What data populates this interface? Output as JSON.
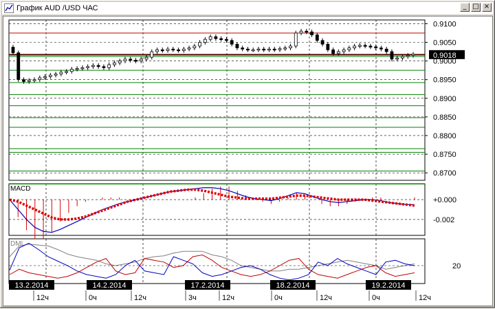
{
  "window": {
    "title": "График AUD /USD  ЧАС",
    "buttons": {
      "minimize": "_",
      "maximize": "□",
      "close": "×"
    }
  },
  "colors": {
    "candle": "#000000",
    "level_red": "#c00000",
    "level_green": "#008000",
    "macd_line": "#0000c0",
    "signal_line": "#e00000",
    "dmi_plus": "#0000c0",
    "dmi_minus": "#c00000",
    "adx": "#808080"
  },
  "price_panel": {
    "y_ticks": [
      "0.9100",
      "0.9050",
      "0.9000",
      "0.8950",
      "0.8900",
      "0.8850",
      "0.8800",
      "0.8750",
      "0.8700"
    ],
    "current_price_label": "0.9018"
  },
  "macd_panel": {
    "label": "MACD",
    "y_ticks": [
      "+0.000",
      "-0.002"
    ]
  },
  "dmi_panel": {
    "label": "DMI",
    "y_ticks": [
      "20"
    ]
  },
  "date_labels": [
    "13.2.2014",
    "14.2.2014",
    "17.2.2014",
    "18.2.2014",
    "19.2.2014"
  ],
  "time_labels": [
    "12ч",
    "0ч",
    "12ч",
    "3ч",
    "12ч",
    "0ч",
    "12ч",
    "0ч",
    "12ч"
  ],
  "chart_data": {
    "type": "candlestick",
    "y_range": [
      0.868,
      0.911
    ],
    "current_price": 0.9018,
    "levels_red": [
      0.9075,
      0.9018
    ],
    "levels_green": [
      0.9012,
      0.8975,
      0.8942,
      0.891,
      0.888,
      0.8848,
      0.8822,
      0.8765,
      0.8755,
      0.8705,
      0.867
    ],
    "closes": [
      0.9022,
      0.895,
      0.8945,
      0.8948,
      0.895,
      0.8955,
      0.8958,
      0.8962,
      0.8965,
      0.897,
      0.8972,
      0.8978,
      0.898,
      0.8982,
      0.8985,
      0.8988,
      0.8985,
      0.8982,
      0.899,
      0.8995,
      0.9,
      0.9005,
      0.9002,
      0.9,
      0.9005,
      0.901,
      0.9025,
      0.903,
      0.9028,
      0.9032,
      0.903,
      0.9028,
      0.9032,
      0.9035,
      0.904,
      0.905,
      0.9058,
      0.9065,
      0.906,
      0.9058,
      0.9055,
      0.9045,
      0.9035,
      0.9032,
      0.903,
      0.903,
      0.9032,
      0.903,
      0.9032,
      0.903,
      0.9033,
      0.9035,
      0.904,
      0.9075,
      0.908,
      0.9078,
      0.907,
      0.9055,
      0.9045,
      0.903,
      0.902,
      0.9025,
      0.903,
      0.9035,
      0.904,
      0.9042,
      0.904,
      0.9038,
      0.9035,
      0.9032,
      0.9025,
      0.9005,
      0.9008,
      0.9012,
      0.9015,
      0.9018
    ],
    "macd": [
      0.0,
      -0.001,
      -0.002,
      -0.0028,
      -0.0032,
      -0.0033,
      -0.003,
      -0.0026,
      -0.0022,
      -0.0018,
      -0.0014,
      -0.001,
      -0.0007,
      -0.0004,
      -0.0002,
      0.0,
      0.0002,
      0.0004,
      0.0006,
      0.0008,
      0.0009,
      0.001,
      0.0011,
      0.0012,
      0.0012,
      0.0011,
      0.0009,
      0.0006,
      0.0003,
      0.0001,
      0.0,
      -0.0001,
      0.0001,
      0.0004,
      0.0007,
      0.0006,
      0.0003,
      0.0,
      -0.0002,
      -0.0003,
      -0.0002,
      -0.0001,
      0.0,
      0.0,
      -0.0001,
      -0.0003,
      -0.0004,
      -0.0005,
      -0.0005
    ],
    "signal": [
      0.0,
      -0.0002,
      -0.0006,
      -0.001,
      -0.0014,
      -0.0018,
      -0.002,
      -0.002,
      -0.0019,
      -0.0017,
      -0.0014,
      -0.0011,
      -0.0008,
      -0.0005,
      -0.0002,
      0.0,
      0.0002,
      0.0004,
      0.0006,
      0.0008,
      0.0009,
      0.001,
      0.001,
      0.0009,
      0.0007,
      0.0005,
      0.0003,
      0.0002,
      0.0001,
      0.0001,
      0.0001,
      0.0001,
      0.0002,
      0.0003,
      0.0004,
      0.0004,
      0.0003,
      0.0002,
      0.0001,
      0.0,
      0.0,
      0.0,
      0.0,
      -0.0001,
      -0.0002,
      -0.0003,
      -0.0004,
      -0.0005,
      -0.0006
    ],
    "dmi_plus": [
      15,
      40,
      45,
      38,
      30,
      25,
      20,
      14,
      10,
      8,
      6,
      10,
      20,
      26,
      14,
      12,
      10,
      30,
      26,
      22,
      12,
      8,
      10,
      14,
      18,
      20,
      16,
      10,
      6,
      4,
      6,
      10,
      24,
      20,
      28,
      22,
      18,
      14,
      10,
      24,
      26,
      22,
      20
    ],
    "dmi_minus": [
      10,
      16,
      12,
      10,
      8,
      6,
      8,
      12,
      18,
      24,
      28,
      14,
      10,
      12,
      28,
      26,
      24,
      18,
      20,
      30,
      32,
      26,
      18,
      14,
      10,
      8,
      10,
      14,
      20,
      26,
      28,
      16,
      10,
      8,
      6,
      10,
      14,
      18,
      20,
      12,
      8,
      10,
      12
    ],
    "adx": [
      30,
      42,
      44,
      43,
      42,
      38,
      33,
      30,
      28,
      26,
      22,
      20,
      22,
      24,
      28,
      30,
      31,
      34,
      36,
      36,
      36,
      32,
      30,
      26,
      20,
      18,
      16,
      14,
      14,
      16,
      16,
      18,
      20,
      22,
      24,
      26,
      24,
      22,
      20,
      16,
      18,
      20,
      22
    ]
  }
}
